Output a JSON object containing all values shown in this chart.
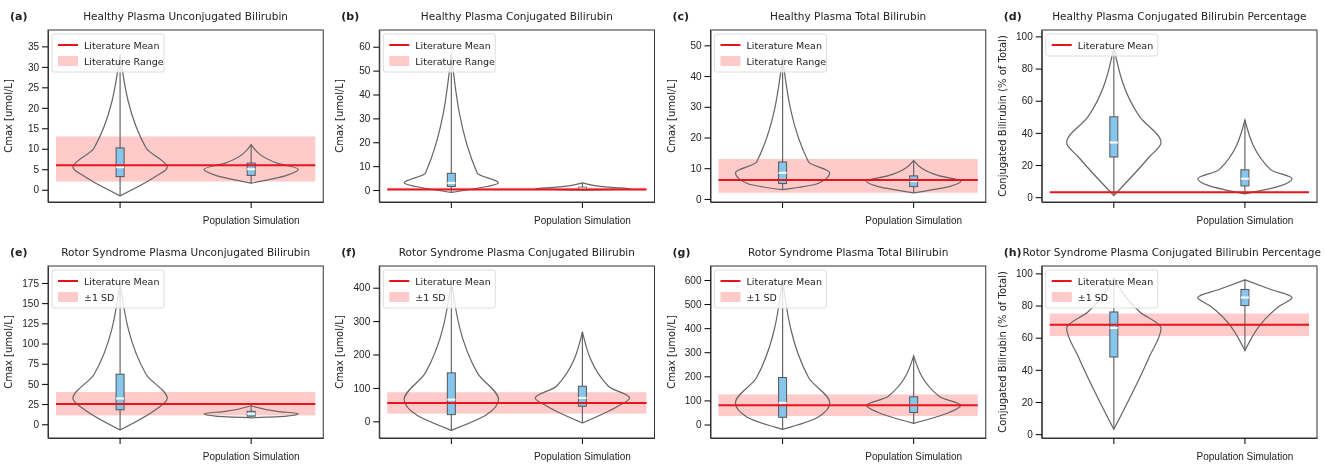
{
  "chart_data": [
    {
      "type": "box",
      "title": "Healthy Plasma Unconjugated Bilirubin",
      "ylabel": "Cmax [umol/L]",
      "annotations": [
        "(a)"
      ],
      "categories": [
        null,
        "Population Simulation"
      ],
      "color": "#87c6ec",
      "boxes": [
        {
          "low": -1.5,
          "q1": 3.2,
          "median": 5.5,
          "q3": 10.2,
          "high": 33
        },
        {
          "low": 1.6,
          "q1": 3.5,
          "median": 5,
          "q3": 6.5,
          "high": 11
        }
      ],
      "ylim": [
        -3,
        39
      ],
      "yticks": [
        0,
        5,
        10,
        15,
        20,
        25,
        30,
        35
      ],
      "ref_lines": [
        {
          "axis": "y",
          "value": 6,
          "label": "Literature Mean",
          "color": "#e8141c"
        }
      ],
      "bands": [
        {
          "axis": "y",
          "from": 2,
          "to": 13,
          "label": "Literature Range",
          "color": "#ffb3b3"
        }
      ],
      "legend": "top left"
    },
    {
      "type": "box",
      "title": "Healthy Plasma Conjugated Bilirubin",
      "ylabel": "Cmax [umol/L]",
      "annotations": [
        "(b)"
      ],
      "categories": [
        null,
        "Population Simulation"
      ],
      "color": "#87c6ec",
      "boxes": [
        {
          "low": -1,
          "q1": 1.5,
          "median": 3,
          "q3": 7,
          "high": 57
        },
        {
          "low": 0,
          "q1": 0.3,
          "median": 0.6,
          "q3": 1.2,
          "high": 3
        }
      ],
      "ylim": [
        -5,
        67
      ],
      "yticks": [
        0,
        10,
        20,
        30,
        40,
        50,
        60
      ],
      "ref_lines": [
        {
          "axis": "y",
          "value": 0.2,
          "label": "Literature Mean",
          "color": "#e8141c"
        }
      ],
      "bands": [
        {
          "axis": "y",
          "from": 0,
          "to": 1,
          "label": "Literature Range",
          "color": "#ffb3b3"
        }
      ],
      "legend": "top left"
    },
    {
      "type": "box",
      "title": "Healthy Plasma Total Bilirubin",
      "ylabel": "Cmax [umol/L]",
      "annotations": [
        "(c)"
      ],
      "categories": [
        null,
        "Population Simulation"
      ],
      "color": "#87c6ec",
      "boxes": [
        {
          "low": 3,
          "q1": 5,
          "median": 8.5,
          "q3": 12,
          "high": 46
        },
        {
          "low": 2,
          "q1": 4,
          "median": 5.8,
          "q3": 7.5,
          "high": 12.5
        }
      ],
      "ylim": [
        -1,
        55
      ],
      "yticks": [
        0,
        10,
        20,
        30,
        40,
        50
      ],
      "ref_lines": [
        {
          "axis": "y",
          "value": 6.2,
          "label": "Literature Mean",
          "color": "#e8141c"
        }
      ],
      "bands": [
        {
          "axis": "y",
          "from": 2,
          "to": 13,
          "label": "Literature Range",
          "color": "#ffb3b3"
        }
      ],
      "legend": "top left"
    },
    {
      "type": "box",
      "title": "Healthy Plasma Conjugated Bilirubin Percentage",
      "ylabel": "Conjugated Bilirubin (% of Total)",
      "annotations": [
        "(d)"
      ],
      "categories": [
        null,
        "Population Simulation"
      ],
      "color": "#87c6ec",
      "boxes": [
        {
          "low": 1,
          "q1": 25,
          "median": 34,
          "q3": 50,
          "high": 93
        },
        {
          "low": 2,
          "q1": 7,
          "median": 11.5,
          "q3": 17,
          "high": 48
        }
      ],
      "ylim": [
        -3,
        104
      ],
      "yticks": [
        0,
        20,
        40,
        60,
        80,
        100
      ],
      "ref_lines": [
        {
          "axis": "y",
          "value": 3,
          "label": "Literature Mean",
          "color": "#e8141c"
        }
      ],
      "legend": "top left"
    },
    {
      "type": "box",
      "title": "Rotor Syndrome Plasma Unconjugated Bilirubin",
      "ylabel": "Cmax [umol/L]",
      "annotations": [
        "(e)"
      ],
      "categories": [
        null,
        "Population Simulation"
      ],
      "color": "#87c6ec",
      "boxes": [
        {
          "low": -7,
          "q1": 18,
          "median": 32,
          "q3": 62,
          "high": 175
        },
        {
          "low": 8,
          "q1": 10,
          "median": 13,
          "q3": 16,
          "high": 23
        }
      ],
      "ylim": [
        -17,
        196
      ],
      "yticks": [
        0,
        25,
        50,
        75,
        100,
        125,
        150,
        175
      ],
      "ref_lines": [
        {
          "axis": "y",
          "value": 25,
          "label": "Literature Mean",
          "color": "#e8141c"
        }
      ],
      "bands": [
        {
          "axis": "y",
          "from": 11,
          "to": 40,
          "label": "±1 SD",
          "color": "#ffb3b3"
        }
      ],
      "legend": "top left"
    },
    {
      "type": "box",
      "title": "Rotor Syndrome Plasma Conjugated Bilirubin",
      "ylabel": "Cmax [umol/L]",
      "annotations": [
        "(f)"
      ],
      "categories": [
        null,
        "Population Simulation"
      ],
      "color": "#87c6ec",
      "boxes": [
        {
          "low": -27,
          "q1": 20,
          "median": 65,
          "q3": 145,
          "high": 420
        },
        {
          "low": -5,
          "q1": 45,
          "median": 70,
          "q3": 105,
          "high": 268
        }
      ],
      "ylim": [
        -50,
        465
      ],
      "yticks": [
        0,
        100,
        200,
        300,
        400
      ],
      "ref_lines": [
        {
          "axis": "y",
          "value": 55,
          "label": "Literature Mean",
          "color": "#e8141c"
        }
      ],
      "bands": [
        {
          "axis": "y",
          "from": 23,
          "to": 87,
          "label": "±1 SD",
          "color": "#ffb3b3"
        }
      ],
      "legend": "top left"
    },
    {
      "type": "box",
      "title": "Rotor Syndrome Plasma Total Bilirubin",
      "ylabel": "Cmax [umol/L]",
      "annotations": [
        "(g)"
      ],
      "categories": [
        null,
        "Population Simulation"
      ],
      "color": "#87c6ec",
      "boxes": [
        {
          "low": -20,
          "q1": 30,
          "median": 90,
          "q3": 195,
          "high": 600
        },
        {
          "low": 5,
          "q1": 50,
          "median": 80,
          "q3": 115,
          "high": 285
        }
      ],
      "ylim": [
        -56,
        658
      ],
      "yticks": [
        0,
        100,
        200,
        300,
        400,
        500,
        600
      ],
      "ref_lines": [
        {
          "axis": "y",
          "value": 80,
          "label": "Literature Mean",
          "color": "#e8141c"
        }
      ],
      "bands": [
        {
          "axis": "y",
          "from": 35,
          "to": 125,
          "label": "±1 SD",
          "color": "#ffb3b3"
        }
      ],
      "legend": "top left"
    },
    {
      "type": "box",
      "title": "Rotor Syndrome Plasma Conjugated Bilirubin Percentage",
      "ylabel": "Conjugated Bilirubin (% of Total)",
      "annotations": [
        "(h)"
      ],
      "categories": [
        null,
        "Population Simulation"
      ],
      "color": "#87c6ec",
      "boxes": [
        {
          "low": 3,
          "q1": 48,
          "median": 66,
          "q3": 76,
          "high": 97
        },
        {
          "low": 52,
          "q1": 80,
          "median": 85,
          "q3": 90,
          "high": 96
        }
      ],
      "ylim": [
        -2.4,
        104.6
      ],
      "yticks": [
        0,
        20,
        40,
        60,
        80,
        100
      ],
      "ref_lines": [
        {
          "axis": "y",
          "value": 68,
          "label": "Literature Mean",
          "color": "#e8141c"
        }
      ],
      "bands": [
        {
          "axis": "y",
          "from": 61,
          "to": 75,
          "label": "±1 SD",
          "color": "#ffb3b3"
        }
      ],
      "legend": "top left"
    }
  ]
}
